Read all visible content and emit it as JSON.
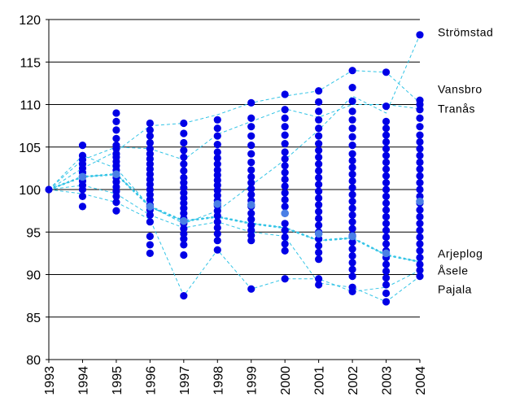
{
  "chart_data": {
    "type": "scatter",
    "title": "",
    "xlabel": "",
    "ylabel": "",
    "ylim": [
      80,
      120
    ],
    "yticks": [
      80,
      85,
      90,
      95,
      100,
      105,
      110,
      115,
      120
    ],
    "categories": [
      "1993",
      "1994",
      "1995",
      "1996",
      "1997",
      "1998",
      "1999",
      "2000",
      "2001",
      "2002",
      "2003",
      "2004"
    ],
    "grid": "horizontal",
    "colors": {
      "points": "#0000e6",
      "lines": "#33c4e6",
      "median": "#4a7fe6"
    },
    "points": [
      [
        100.0
      ],
      [
        98.0,
        99.2,
        100.0,
        100.5,
        101.0,
        101.5,
        102.0,
        102.5,
        103.0,
        103.5,
        104.0,
        105.2
      ],
      [
        97.5,
        98.5,
        99.2,
        99.8,
        100.3,
        100.9,
        101.4,
        101.8,
        102.3,
        102.8,
        103.3,
        103.8,
        104.2,
        104.8,
        105.2,
        106.0,
        107.0,
        108.0,
        109.0
      ],
      [
        92.5,
        93.5,
        94.5,
        96.2,
        97.0,
        97.6,
        98.2,
        98.8,
        99.4,
        100.0,
        100.6,
        101.2,
        101.8,
        102.4,
        103.0,
        103.6,
        104.2,
        104.8,
        105.5,
        106.3,
        107.0,
        107.8
      ],
      [
        87.5,
        92.3,
        93.5,
        94.2,
        94.8,
        95.4,
        96.0,
        96.6,
        97.2,
        97.8,
        98.4,
        99.0,
        99.6,
        100.2,
        100.8,
        101.4,
        102.2,
        103.0,
        103.8,
        104.6,
        105.5,
        106.6,
        107.8
      ],
      [
        92.9,
        94.0,
        94.8,
        95.5,
        96.2,
        96.9,
        97.5,
        98.1,
        98.7,
        99.3,
        99.9,
        100.5,
        101.1,
        101.7,
        102.3,
        103.0,
        103.7,
        104.4,
        105.3,
        106.3,
        107.2,
        108.2
      ],
      [
        88.3,
        94.0,
        94.6,
        95.2,
        95.8,
        96.5,
        97.2,
        98.0,
        98.7,
        99.4,
        100.1,
        100.8,
        101.5,
        102.3,
        103.2,
        104.2,
        105.2,
        106.3,
        107.4,
        108.4,
        110.2
      ],
      [
        89.5,
        92.8,
        93.6,
        94.4,
        95.2,
        96.0,
        97.2,
        98.0,
        98.8,
        99.6,
        100.4,
        101.2,
        102.0,
        102.8,
        103.6,
        104.4,
        105.4,
        106.4,
        107.4,
        108.4,
        109.4,
        111.2
      ],
      [
        88.8,
        89.5,
        91.8,
        92.6,
        93.4,
        94.2,
        95.0,
        95.8,
        96.6,
        97.4,
        98.2,
        99.0,
        99.8,
        100.6,
        101.4,
        102.2,
        103.0,
        103.8,
        104.6,
        105.4,
        106.3,
        107.2,
        108.2,
        109.2,
        110.3,
        111.6
      ],
      [
        88.0,
        88.5,
        89.8,
        90.6,
        91.4,
        92.2,
        93.0,
        93.8,
        94.6,
        95.4,
        96.2,
        97.0,
        97.8,
        98.6,
        99.4,
        100.2,
        101.0,
        101.8,
        102.6,
        103.4,
        104.2,
        105.2,
        106.2,
        107.2,
        108.2,
        109.2,
        110.4,
        112.0,
        114.0
      ],
      [
        86.8,
        87.8,
        88.8,
        89.6,
        90.4,
        91.2,
        92.0,
        92.8,
        93.6,
        94.4,
        95.2,
        96.0,
        96.8,
        97.6,
        98.4,
        99.2,
        100.0,
        100.8,
        101.6,
        102.4,
        103.2,
        104.0,
        104.8,
        105.6,
        106.4,
        107.2,
        108.0,
        109.8,
        113.8
      ],
      [
        89.8,
        90.5,
        91.2,
        92.0,
        92.8,
        93.6,
        94.4,
        95.2,
        96.0,
        96.8,
        97.6,
        98.4,
        99.2,
        100.0,
        100.8,
        101.6,
        102.4,
        103.2,
        104.0,
        104.8,
        105.6,
        106.4,
        107.4,
        108.4,
        109.4,
        110.0,
        110.5,
        118.2
      ]
    ],
    "median_line": [
      100.0,
      101.5,
      101.8,
      98.0,
      96.3,
      96.8,
      96.0,
      95.5,
      94.0,
      94.3,
      92.3,
      91.5
    ],
    "highlight_points": [
      {
        "x": "1994",
        "y": 101.5
      },
      {
        "x": "1995",
        "y": 101.8
      },
      {
        "x": "1996",
        "y": 98.0
      },
      {
        "x": "1997",
        "y": 96.3
      },
      {
        "x": "1998",
        "y": 98.3
      },
      {
        "x": "1999",
        "y": 98.2
      },
      {
        "x": "2000",
        "y": 97.2
      },
      {
        "x": "2001",
        "y": 94.8
      },
      {
        "x": "2002",
        "y": 94.5
      },
      {
        "x": "2003",
        "y": 92.5
      },
      {
        "x": "2004",
        "y": 98.6
      }
    ],
    "series": [
      {
        "name": "Strömstad",
        "values": [
          100.0,
          104.0,
          102.5,
          98.0,
          96.0,
          97.5,
          100.5,
          103.5,
          107.0,
          111.0,
          109.0,
          118.2
        ]
      },
      {
        "name": "Vansbro",
        "values": [
          100.0,
          102.5,
          104.5,
          107.5,
          107.8,
          108.8,
          110.2,
          111.0,
          111.6,
          114.0,
          113.8,
          110.2
        ]
      },
      {
        "name": "Tranås",
        "values": [
          100.0,
          103.5,
          105.0,
          104.8,
          103.5,
          106.5,
          108.0,
          109.5,
          108.5,
          110.0,
          110.0,
          109.5
        ]
      },
      {
        "name": "Arjeplog",
        "values": [
          100.0,
          101.5,
          101.8,
          98.0,
          96.3,
          96.8,
          96.0,
          95.5,
          94.0,
          94.3,
          92.3,
          91.5
        ]
      },
      {
        "name": "Åsele",
        "values": [
          100.0,
          99.5,
          98.5,
          96.5,
          87.5,
          92.9,
          88.3,
          89.5,
          89.5,
          88.0,
          88.5,
          90.5
        ]
      },
      {
        "name": "Pajala",
        "values": [
          100.0,
          100.5,
          99.5,
          97.0,
          95.5,
          96.2,
          95.0,
          94.5,
          89.0,
          88.5,
          86.8,
          89.8
        ]
      }
    ],
    "annotations": [
      {
        "label": "Strömstad",
        "y": 118.5
      },
      {
        "label": "Vansbro",
        "y": 111.8
      },
      {
        "label": "Tranås",
        "y": 109.5
      },
      {
        "label": "Arjeplog",
        "y": 92.5
      },
      {
        "label": "Åsele",
        "y": 90.5
      },
      {
        "label": "Pajala",
        "y": 88.3
      }
    ]
  }
}
